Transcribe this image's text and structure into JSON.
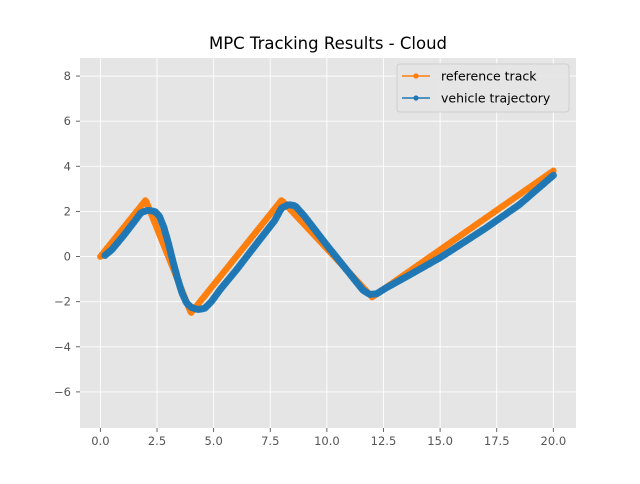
{
  "chart_data": {
    "type": "line",
    "title": "MPC Tracking Results - Cloud",
    "xlabel": "",
    "ylabel": "",
    "xlim": [
      -0.9,
      21.0
    ],
    "ylim": [
      -7.6,
      8.8
    ],
    "xticks": [
      "0.0",
      "2.5",
      "5.0",
      "7.5",
      "10.0",
      "12.5",
      "15.0",
      "17.5",
      "20.0"
    ],
    "xtick_values": [
      0,
      2.5,
      5,
      7.5,
      10,
      12.5,
      15,
      17.5,
      20
    ],
    "yticks": [
      "−6",
      "−4",
      "−2",
      "0",
      "2",
      "4",
      "6",
      "8"
    ],
    "ytick_values": [
      -6,
      -4,
      -2,
      0,
      2,
      4,
      6,
      8
    ],
    "grid": true,
    "legend_position": "top-right",
    "series": [
      {
        "name": "reference track",
        "color": "#ff7f0e",
        "marker": "circle",
        "style": "line+markers",
        "x": [
          0,
          2,
          4,
          8,
          12,
          20
        ],
        "y": [
          0,
          2.5,
          -2.5,
          2.5,
          -1.8,
          3.8
        ]
      },
      {
        "name": "vehicle trajectory",
        "color": "#1f77b4",
        "marker": "circle",
        "style": "line+markers",
        "x": [
          0.2,
          0.5,
          1.0,
          1.5,
          1.8,
          2.1,
          2.4,
          2.6,
          2.8,
          3.0,
          3.2,
          3.4,
          3.6,
          3.8,
          4.0,
          4.3,
          4.6,
          4.9,
          5.3,
          6.0,
          7.0,
          7.7,
          8.0,
          8.3,
          8.6,
          9.0,
          10.0,
          11.0,
          11.6,
          11.9,
          12.2,
          12.6,
          13.5,
          15.0,
          17.0,
          18.5,
          20.0
        ],
        "y": [
          0.05,
          0.3,
          0.9,
          1.55,
          1.95,
          2.05,
          2.0,
          1.8,
          1.3,
          0.6,
          -0.2,
          -0.95,
          -1.6,
          -2.05,
          -2.25,
          -2.35,
          -2.3,
          -2.0,
          -1.45,
          -0.6,
          0.7,
          1.6,
          2.15,
          2.3,
          2.25,
          1.8,
          0.5,
          -0.75,
          -1.5,
          -1.68,
          -1.65,
          -1.4,
          -0.9,
          -0.05,
          1.25,
          2.3,
          3.6
        ]
      }
    ]
  }
}
